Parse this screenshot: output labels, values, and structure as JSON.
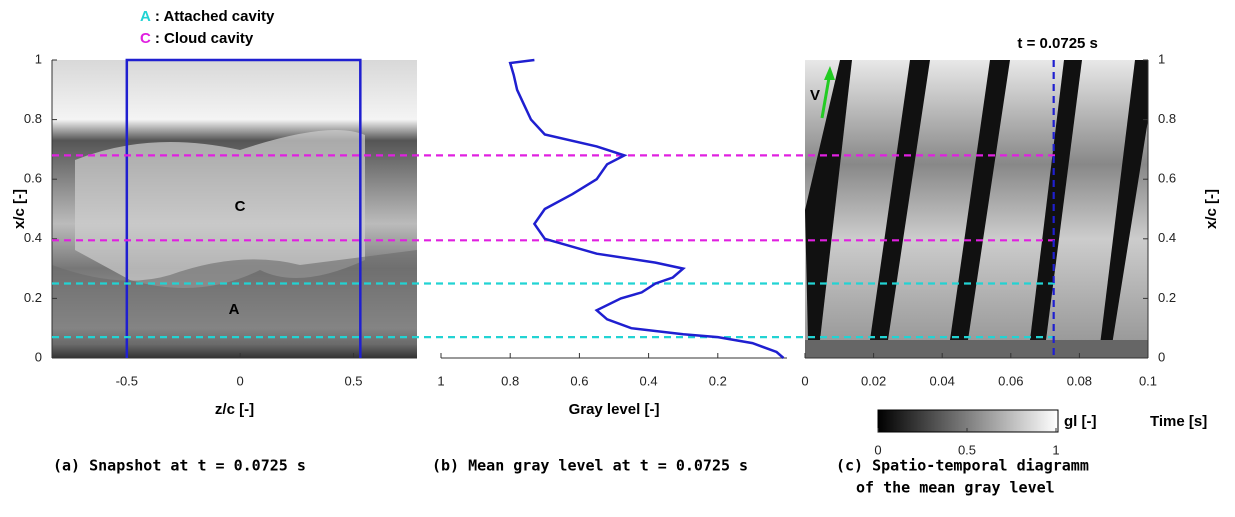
{
  "chart_data": [
    {
      "type": "image",
      "title": "(a) Snapshot at t = 0.0725 s",
      "xlabel": "z/c [-]",
      "ylabel": "x/c [-]",
      "xlim": [
        -0.83,
        0.78
      ],
      "ylim": [
        0,
        1
      ],
      "xticks": [
        -0.5,
        0,
        0.5
      ],
      "yticks": [
        0,
        0.2,
        0.4,
        0.6,
        0.8,
        1
      ],
      "window": [
        -0.5,
        0.53
      ],
      "window_color": "#1f1fd0",
      "legend": [
        {
          "letter": "A",
          "text": ": Attached cavity",
          "color": "#22d3d3"
        },
        {
          "letter": "C",
          "text": ": Cloud cavity",
          "color": "#e020e0"
        }
      ],
      "region_labels": [
        {
          "text": "C",
          "color": "#e020e0"
        },
        {
          "text": "A",
          "color": "#22d3d3"
        }
      ],
      "reference_lines": [
        {
          "value": 0.68,
          "color": "#e020e0"
        },
        {
          "value": 0.395,
          "color": "#e020e0"
        },
        {
          "value": 0.25,
          "color": "#22d3d3"
        },
        {
          "value": 0.07,
          "color": "#22d3d3"
        }
      ]
    },
    {
      "type": "line",
      "title": "(b) Mean gray level at t = 0.0725 s",
      "xlabel": "Gray level [-]",
      "xlim": [
        1,
        0
      ],
      "ylim": [
        0,
        1
      ],
      "xticks": [
        1,
        0.8,
        0.6,
        0.4,
        0.2
      ],
      "series": [
        {
          "color": "#1f1fd0",
          "x": [
            0.73,
            0.8,
            0.79,
            0.78,
            0.76,
            0.74,
            0.7,
            0.55,
            0.47,
            0.52,
            0.55,
            0.62,
            0.7,
            0.73,
            0.7,
            0.55,
            0.38,
            0.3,
            0.33,
            0.38,
            0.42,
            0.48,
            0.55,
            0.52,
            0.45,
            0.3,
            0.2,
            0.1,
            0.03,
            0.01
          ],
          "y": [
            1,
            0.99,
            0.95,
            0.9,
            0.85,
            0.8,
            0.75,
            0.71,
            0.68,
            0.65,
            0.6,
            0.55,
            0.5,
            0.45,
            0.4,
            0.35,
            0.32,
            0.3,
            0.27,
            0.25,
            0.22,
            0.2,
            0.16,
            0.13,
            0.1,
            0.08,
            0.07,
            0.05,
            0.02,
            0
          ]
        }
      ]
    },
    {
      "type": "image",
      "title": [
        "(c) Spatio-temporal diagramm",
        "of the mean gray level"
      ],
      "xlabel": "Time [s]",
      "ylabel": "x/c [-]",
      "xlim": [
        0,
        0.1
      ],
      "ylim": [
        0,
        1
      ],
      "xticks": [
        0,
        0.02,
        0.04,
        0.06,
        0.08,
        0.1
      ],
      "yticks": [
        0,
        0.2,
        0.4,
        0.6,
        0.8,
        1
      ],
      "marker": {
        "label": "t = 0.0725 s",
        "value": 0.0725,
        "color": "#1f1fd0"
      },
      "arrow_label": "V",
      "arrow_color": "#22cc22",
      "colorbar": {
        "label": "gl [-]",
        "lim": [
          0,
          1
        ],
        "ticks": [
          0,
          0.5,
          1
        ]
      }
    }
  ]
}
